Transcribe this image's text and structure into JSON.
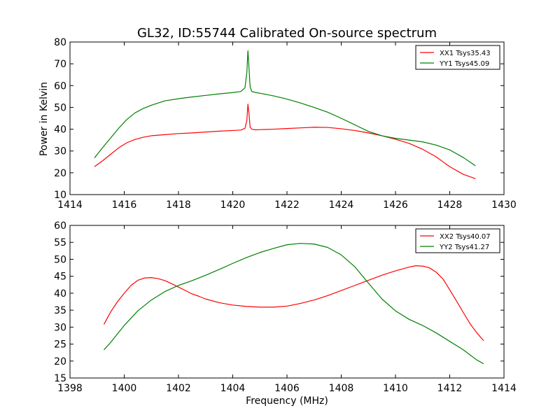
{
  "figure": {
    "title": "GL32, ID:55744 Calibrated On-source spectrum",
    "shared_xlabel": "Frequency (MHz)",
    "ylabel": "Power in Kelvin"
  },
  "chart_data": [
    {
      "type": "line",
      "title": "GL32, ID:55744 Calibrated On-source spectrum",
      "xlabel": "",
      "ylabel": "Power in Kelvin",
      "xlim": [
        1414,
        1430
      ],
      "ylim": [
        10,
        80
      ],
      "xticks": [
        1414,
        1416,
        1418,
        1420,
        1422,
        1424,
        1426,
        1428,
        1430
      ],
      "yticks": [
        10,
        20,
        30,
        40,
        50,
        60,
        70,
        80
      ],
      "grid": false,
      "legend": "top-right",
      "series": [
        {
          "name": "XX1 Tsys35.43",
          "color": "#ff0000",
          "x": [
            1414.9,
            1415.2,
            1415.5,
            1415.8,
            1416.1,
            1416.4,
            1416.7,
            1417.0,
            1417.5,
            1418.0,
            1418.5,
            1419.0,
            1419.5,
            1420.0,
            1420.3,
            1420.45,
            1420.52,
            1420.56,
            1420.6,
            1420.64,
            1420.7,
            1420.85,
            1421.0,
            1421.5,
            1422.0,
            1422.5,
            1423.0,
            1423.5,
            1424.0,
            1424.5,
            1425.0,
            1425.5,
            1426.0,
            1426.5,
            1427.0,
            1427.5,
            1428.0,
            1428.5,
            1428.95
          ],
          "y": [
            22.8,
            25.5,
            28.5,
            31.5,
            33.8,
            35.3,
            36.3,
            37.0,
            37.5,
            38.0,
            38.3,
            38.7,
            39.1,
            39.4,
            39.6,
            40.4,
            44.0,
            51.5,
            47.0,
            41.0,
            40.0,
            39.7,
            39.8,
            40.0,
            40.3,
            40.6,
            40.9,
            40.8,
            40.2,
            39.4,
            38.3,
            37.0,
            35.4,
            33.5,
            30.8,
            27.3,
            22.8,
            19.3,
            17.3
          ]
        },
        {
          "name": "YY1 Tsys45.09",
          "color": "#008000",
          "x": [
            1414.9,
            1415.2,
            1415.5,
            1415.8,
            1416.1,
            1416.4,
            1416.7,
            1417.0,
            1417.5,
            1418.0,
            1418.5,
            1419.0,
            1419.5,
            1420.0,
            1420.3,
            1420.45,
            1420.52,
            1420.56,
            1420.6,
            1420.64,
            1420.7,
            1420.85,
            1421.0,
            1421.5,
            1422.0,
            1422.5,
            1423.0,
            1423.5,
            1424.0,
            1424.5,
            1425.0,
            1425.5,
            1426.0,
            1426.5,
            1427.0,
            1427.5,
            1428.0,
            1428.5,
            1428.95
          ],
          "y": [
            26.8,
            31.5,
            36.0,
            40.5,
            44.5,
            47.5,
            49.5,
            51.0,
            53.0,
            54.0,
            54.8,
            55.5,
            56.2,
            56.8,
            57.3,
            59.0,
            66.0,
            76.0,
            68.0,
            59.5,
            57.3,
            56.8,
            56.5,
            55.3,
            53.8,
            52.0,
            50.0,
            47.8,
            45.0,
            42.0,
            39.0,
            37.0,
            35.8,
            35.0,
            34.2,
            32.7,
            30.5,
            27.0,
            23.2
          ]
        }
      ]
    },
    {
      "type": "line",
      "title": "",
      "xlabel": "Frequency (MHz)",
      "ylabel": "",
      "xlim": [
        1398,
        1414
      ],
      "ylim": [
        15,
        60
      ],
      "xticks": [
        1398,
        1400,
        1402,
        1404,
        1406,
        1408,
        1410,
        1412,
        1414
      ],
      "yticks": [
        15,
        20,
        25,
        30,
        35,
        40,
        45,
        50,
        55,
        60
      ],
      "grid": false,
      "legend": "top-right",
      "series": [
        {
          "name": "XX2 Tsys40.07",
          "color": "#ff0000",
          "x": [
            1399.25,
            1399.5,
            1399.75,
            1400.0,
            1400.25,
            1400.5,
            1400.75,
            1401.0,
            1401.25,
            1401.5,
            1401.75,
            1402.0,
            1402.25,
            1402.5,
            1402.75,
            1403.0,
            1403.5,
            1404.0,
            1404.5,
            1405.0,
            1405.5,
            1406.0,
            1406.5,
            1407.0,
            1407.5,
            1408.0,
            1408.5,
            1409.0,
            1409.5,
            1410.0,
            1410.5,
            1410.75,
            1411.0,
            1411.25,
            1411.5,
            1411.75,
            1412.0,
            1412.25,
            1412.5,
            1412.75,
            1413.0,
            1413.25
          ],
          "y": [
            30.8,
            34.5,
            37.5,
            40.0,
            42.3,
            43.8,
            44.5,
            44.6,
            44.3,
            43.7,
            42.8,
            41.8,
            40.8,
            39.8,
            39.1,
            38.3,
            37.2,
            36.5,
            36.1,
            35.9,
            35.9,
            36.2,
            37.0,
            38.0,
            39.3,
            40.8,
            42.3,
            43.8,
            45.3,
            46.6,
            47.7,
            48.1,
            48.0,
            47.5,
            46.2,
            44.2,
            41.0,
            37.7,
            34.3,
            31.0,
            28.3,
            26.0
          ]
        },
        {
          "name": "YY2 Tsys41.27",
          "color": "#008000",
          "x": [
            1399.25,
            1399.5,
            1399.75,
            1400.0,
            1400.5,
            1401.0,
            1401.5,
            1402.0,
            1402.5,
            1403.0,
            1403.5,
            1404.0,
            1404.5,
            1405.0,
            1405.5,
            1406.0,
            1406.5,
            1407.0,
            1407.5,
            1408.0,
            1408.5,
            1409.0,
            1409.5,
            1410.0,
            1410.5,
            1411.0,
            1411.5,
            1412.0,
            1412.5,
            1413.0,
            1413.25
          ],
          "y": [
            23.3,
            25.5,
            28.0,
            30.5,
            34.8,
            38.0,
            40.5,
            42.3,
            43.7,
            45.3,
            47.0,
            48.8,
            50.5,
            52.0,
            53.2,
            54.3,
            54.7,
            54.5,
            53.5,
            51.3,
            47.8,
            43.0,
            38.3,
            34.8,
            32.3,
            30.5,
            28.3,
            25.8,
            23.3,
            20.3,
            19.2
          ]
        }
      ]
    }
  ]
}
